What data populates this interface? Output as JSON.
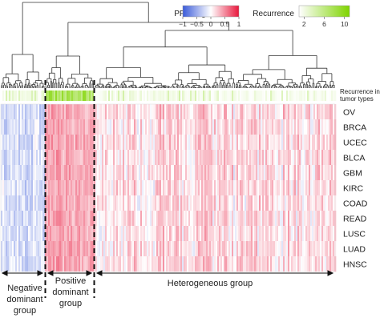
{
  "chart_data": {
    "type": "heatmap",
    "row_labels": [
      "OV",
      "BRCA",
      "UCEC",
      "BLCA",
      "GBM",
      "KIRC",
      "COAD",
      "READ",
      "LUSC",
      "LUAD",
      "HNSC"
    ],
    "recurrence_row_label_line1": "Recurrence in",
    "recurrence_row_label_line2": "tumor types",
    "legend_ppi": {
      "title": "PPI weights",
      "ticks": [
        "−1",
        "−0.5",
        "0",
        "0.5",
        "1"
      ],
      "min": -1,
      "max": 1,
      "colors": {
        "neg": "#3b5bd9",
        "mid": "#ffffff",
        "pos": "#e8173c"
      }
    },
    "legend_recurrence": {
      "title": "Recurrence",
      "ticks": [
        "2",
        "6",
        "10"
      ],
      "min": 1,
      "max": 11,
      "colors": {
        "low": "#ffffff",
        "high": "#7fd400"
      }
    },
    "groups": [
      {
        "line1": "Negative",
        "line2": "dominant",
        "line3": "group",
        "mean_weight": -0.18,
        "fraction": 0.13
      },
      {
        "line1": "Positive",
        "line2": "dominant",
        "line3": "group",
        "mean_weight": 0.32,
        "fraction": 0.14
      },
      {
        "line1": "Heterogeneous group",
        "line2": "",
        "line3": "",
        "mean_weight": 0.14,
        "fraction": 0.73
      }
    ],
    "dendrogram": true
  }
}
